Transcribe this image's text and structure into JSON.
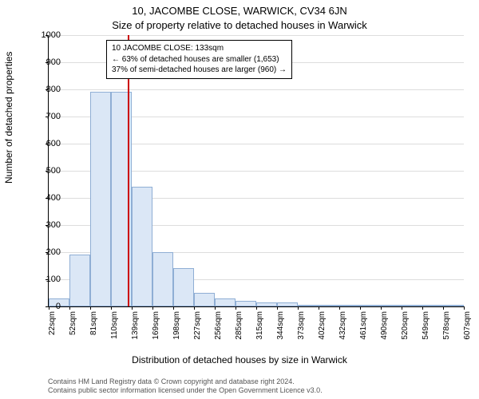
{
  "chart": {
    "type": "histogram",
    "title_line1": "10, JACOMBE CLOSE, WARWICK, CV34 6JN",
    "title_line2": "Size of property relative to detached houses in Warwick",
    "ylabel": "Number of detached properties",
    "xlabel": "Distribution of detached houses by size in Warwick",
    "background_color": "#ffffff",
    "grid_color": "#dddddd",
    "axis_color": "#000000",
    "bar_fill": "#dbe7f6",
    "bar_stroke": "#8faed4",
    "ref_line_color": "#cc0000",
    "ref_value": 133,
    "ylim": [
      0,
      1000
    ],
    "ytick_step": 100,
    "xticks": [
      "22sqm",
      "52sqm",
      "81sqm",
      "110sqm",
      "139sqm",
      "169sqm",
      "198sqm",
      "227sqm",
      "256sqm",
      "285sqm",
      "315sqm",
      "344sqm",
      "373sqm",
      "402sqm",
      "432sqm",
      "461sqm",
      "490sqm",
      "520sqm",
      "549sqm",
      "578sqm",
      "607sqm"
    ],
    "bars": [
      30,
      190,
      790,
      790,
      440,
      200,
      140,
      50,
      30,
      20,
      15,
      15,
      5,
      5,
      5,
      2,
      2,
      2,
      2,
      2
    ],
    "annotation": {
      "line1": "10 JACOMBE CLOSE: 133sqm",
      "line2": "← 63% of detached houses are smaller (1,653)",
      "line3": "37% of semi-detached houses are larger (960) →"
    },
    "title_fontsize": 13,
    "label_fontsize": 12,
    "tick_fontsize": 11,
    "xtick_fontsize": 10,
    "annotation_fontsize": 10
  },
  "attribution": {
    "line1": "Contains HM Land Registry data © Crown copyright and database right 2024.",
    "line2": "Contains public sector information licensed under the Open Government Licence v3.0."
  }
}
